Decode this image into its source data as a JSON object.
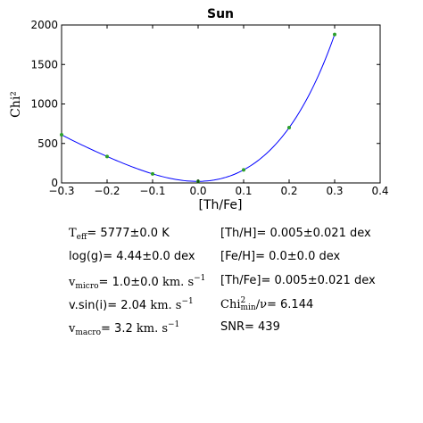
{
  "chart_data": {
    "type": "line",
    "title": "Sun",
    "xlabel": "[Th/Fe]",
    "ylabel": "Chi²",
    "xlim": [
      -0.3,
      0.4
    ],
    "ylim": [
      0,
      2000
    ],
    "xticks": [
      "−0.3",
      "−0.2",
      "−0.1",
      "0.0",
      "0.1",
      "0.2",
      "0.3",
      "0.4"
    ],
    "yticks": [
      "0",
      "500",
      "1000",
      "1500",
      "2000"
    ],
    "points": [
      {
        "x": -0.3,
        "y": 610
      },
      {
        "x": -0.2,
        "y": 335
      },
      {
        "x": -0.1,
        "y": 115
      },
      {
        "x": 0.0,
        "y": 20
      },
      {
        "x": 0.1,
        "y": 165
      },
      {
        "x": 0.2,
        "y": 700
      },
      {
        "x": 0.3,
        "y": 1880
      }
    ],
    "fit": {
      "color": "#0000ff",
      "curve": [
        1,
        0.005,
        17.89,
        0.0,
        6.7,
        0.0
      ]
    },
    "marker_color": "#2ca02c",
    "grid": false
  },
  "stats": {
    "teff": {
      "label_base": "T",
      "label_sub": "eff",
      "value": "= 5777±0.0 K"
    },
    "logg": {
      "label": "log(g)",
      "value": "= 4.44±0.0 dex"
    },
    "vmicro": {
      "label_base": "v",
      "label_sub": "micro",
      "value": "= 1.0±0.0",
      "unit": "km. s",
      "unit_sup": "−1"
    },
    "vsini": {
      "label": "v.sin(i)",
      "value": "= 2.04",
      "unit": "km. s",
      "unit_sup": "−1"
    },
    "vmacro": {
      "label_base": "v",
      "label_sub": "macro",
      "value": "= 3.2",
      "unit": "km. s",
      "unit_sup": "−1"
    },
    "thh": {
      "label": "[Th/H]",
      "value": "= 0.005±0.021 dex"
    },
    "feh": {
      "label": "[Fe/H]",
      "value": "= 0.0±0.0 dex"
    },
    "thfe": {
      "label": "[Th/Fe]",
      "value": "= 0.005±0.021 dex"
    },
    "chi2": {
      "label_base": "Chi",
      "label_sup": "2",
      "label_sub": "min",
      "label_tail": "/ν",
      "value": "= 6.144"
    },
    "snr": {
      "label": "SNR",
      "value": "= 439"
    }
  }
}
